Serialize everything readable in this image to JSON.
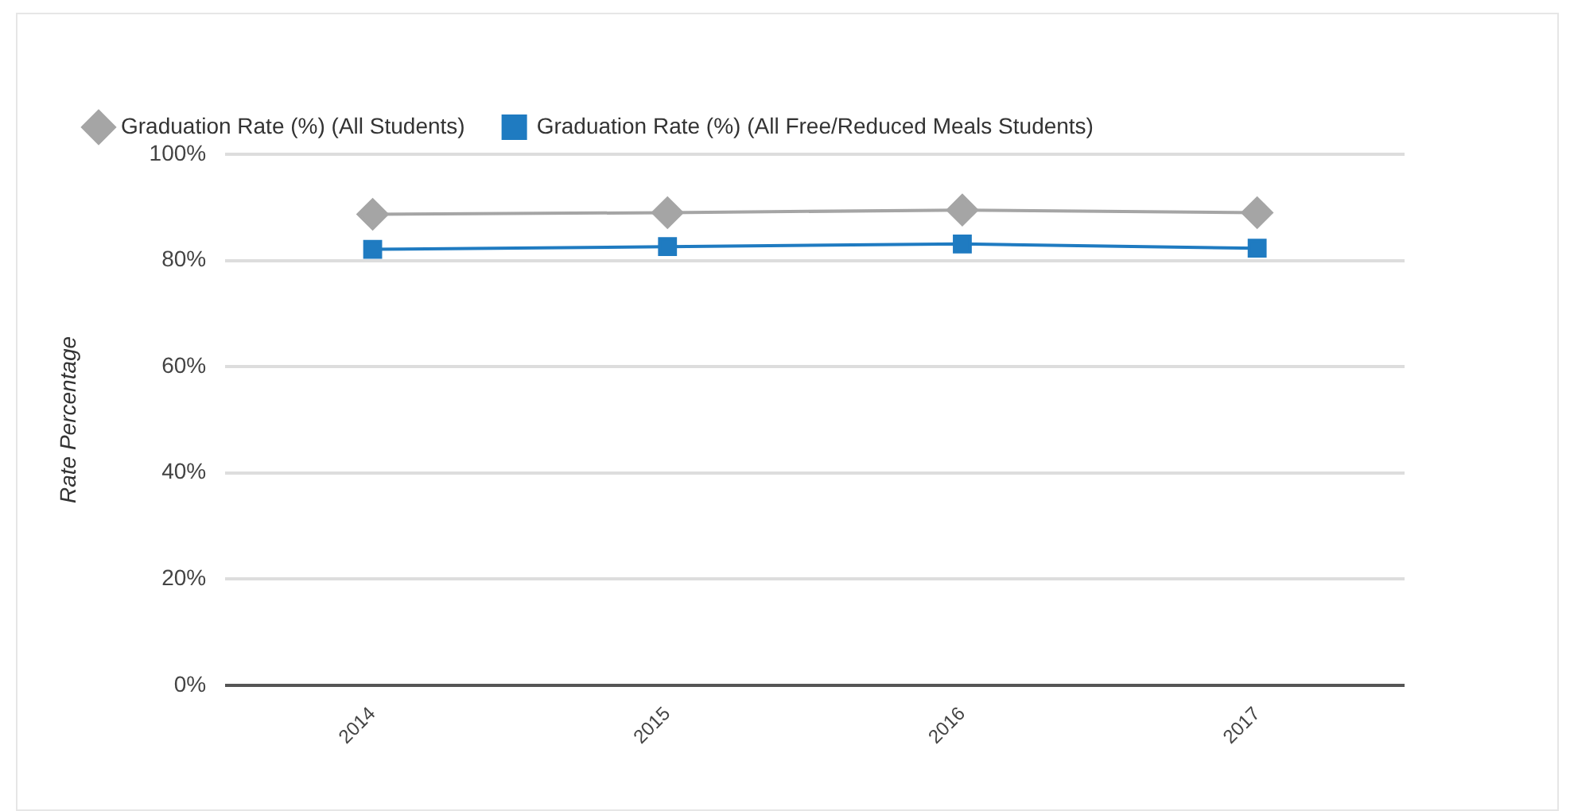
{
  "chart_data": {
    "type": "line",
    "ylabel": "Rate Percentage",
    "categories": [
      "2014",
      "2015",
      "2016",
      "2017"
    ],
    "series": [
      {
        "name": "Graduation Rate (%) (All Students)",
        "color": "#a5a5a5",
        "marker": "diamond",
        "values": [
          88.7,
          89.0,
          89.5,
          89.0
        ]
      },
      {
        "name": "Graduation Rate (%) (All Free/Reduced Meals Students)",
        "color": "#1f7bc1",
        "marker": "square",
        "values": [
          82.1,
          82.6,
          83.1,
          82.3
        ]
      }
    ],
    "ylim": [
      0,
      100
    ],
    "yticks": [
      {
        "value": 0,
        "label": "0%"
      },
      {
        "value": 20,
        "label": "20%"
      },
      {
        "value": 40,
        "label": "40%"
      },
      {
        "value": 60,
        "label": "60%"
      },
      {
        "value": 80,
        "label": "80%"
      },
      {
        "value": 100,
        "label": "100%"
      }
    ],
    "grid": "y",
    "legend": "top left"
  }
}
